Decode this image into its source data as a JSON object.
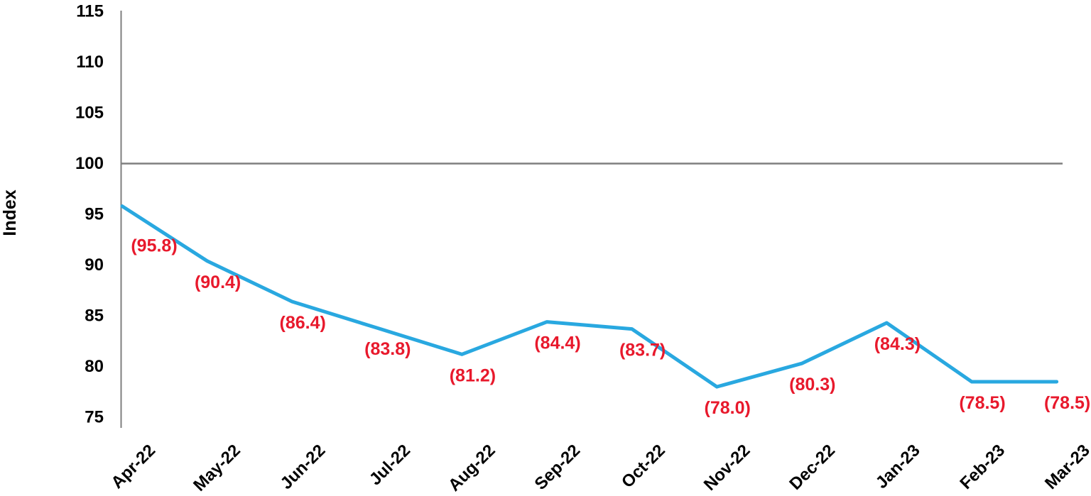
{
  "chart_data": {
    "type": "line",
    "title": "",
    "xlabel": "",
    "ylabel": "Index",
    "categories": [
      "Apr-22",
      "May-22",
      "Jun-22",
      "Jul-22",
      "Aug-22",
      "Sep-22",
      "Oct-22",
      "Nov-22",
      "Dec-22",
      "Jan-23",
      "Feb-23",
      "Mar-23"
    ],
    "series": [
      {
        "name": "Index",
        "values": [
          95.8,
          90.4,
          86.4,
          83.8,
          81.2,
          84.4,
          83.7,
          78.0,
          80.3,
          84.3,
          78.5,
          78.5
        ]
      }
    ],
    "data_labels": [
      "(95.8)",
      "(90.4)",
      "(86.4)",
      "(83.8)",
      "(81.2)",
      "(84.4)",
      "(83.7)",
      "(78.0)",
      "(80.3)",
      "(84.3)",
      "(78.5)",
      "(78.5)"
    ],
    "ylim": [
      75,
      115
    ],
    "yticks": [
      115,
      110,
      105,
      100,
      95,
      90,
      85,
      80,
      75
    ],
    "reference_line": 100,
    "grid": false,
    "legend": "none",
    "x_label_rotation_deg": -45,
    "colors": {
      "line": "#29a8e0",
      "data_label": "#e8192c",
      "axis": "#7f7f7f",
      "reference_line": "#7f7f7f",
      "tick_text": "#000000"
    }
  }
}
